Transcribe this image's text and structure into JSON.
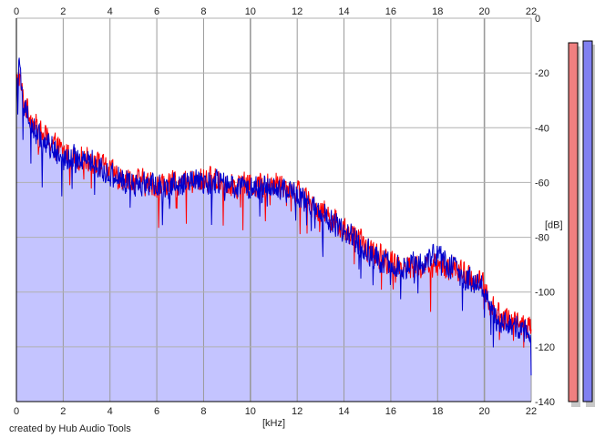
{
  "chart_data": {
    "type": "line",
    "title": "",
    "xlabel": "[kHz]",
    "ylabel": "[dB]",
    "xlim": [
      0,
      22
    ],
    "ylim": [
      -140,
      0
    ],
    "x_ticks": [
      0,
      2,
      4,
      6,
      8,
      10,
      12,
      14,
      16,
      18,
      20,
      22
    ],
    "x_tick_labels": [
      "0",
      "2",
      "4",
      "6",
      "8",
      "10",
      "12",
      "14",
      "16",
      "18",
      "20",
      "22"
    ],
    "y_ticks": [
      0,
      -20,
      -40,
      -60,
      -80,
      -100,
      -120,
      -140
    ],
    "y_tick_labels": [
      "0",
      "-20",
      "-40",
      "-60",
      "-80",
      "-100",
      "-120",
      "-140"
    ],
    "grid": true,
    "legend": "none",
    "series": [
      {
        "color": "#ff0000",
        "x": [
          0,
          0.1,
          0.3,
          0.6,
          1,
          1.5,
          2,
          2.5,
          3,
          3.5,
          4,
          4.5,
          5,
          5.5,
          6,
          6.5,
          7,
          7.5,
          8,
          8.5,
          9,
          9.5,
          10,
          10.5,
          11,
          11.5,
          12,
          12.5,
          13,
          13.5,
          14,
          14.5,
          15,
          15.5,
          16,
          16.5,
          17,
          17.5,
          18,
          18.5,
          19,
          19.5,
          20,
          20.2,
          20.5,
          21,
          21.5,
          22
        ],
        "y": [
          -26,
          -20,
          -30,
          -36,
          -42,
          -45,
          -49,
          -51,
          -51,
          -53,
          -56,
          -58,
          -59,
          -60,
          -61,
          -61,
          -60,
          -60,
          -59,
          -59,
          -60,
          -61,
          -61,
          -61,
          -60,
          -61,
          -63,
          -67,
          -70,
          -73,
          -77,
          -80,
          -84,
          -87,
          -89,
          -90,
          -91,
          -91,
          -90,
          -91,
          -93,
          -95,
          -98,
          -103,
          -108,
          -110,
          -111,
          -114
        ]
      },
      {
        "color": "#0000cc",
        "x": [
          0,
          0.1,
          0.3,
          0.6,
          1,
          1.5,
          2,
          2.5,
          3,
          3.5,
          4,
          4.5,
          5,
          5.5,
          6,
          6.5,
          7,
          7.5,
          8,
          8.5,
          9,
          9.5,
          10,
          10.5,
          11,
          11.5,
          12,
          12.5,
          13,
          13.5,
          14,
          14.5,
          15,
          15.5,
          16,
          16.5,
          17,
          17.5,
          18,
          18.5,
          19,
          19.5,
          20,
          20.2,
          20.5,
          21,
          21.5,
          22
        ],
        "y": [
          -27,
          -18,
          -31,
          -38,
          -44,
          -47,
          -51,
          -51,
          -51,
          -54,
          -57,
          -59,
          -60,
          -61,
          -62,
          -62,
          -61,
          -60,
          -60,
          -60,
          -61,
          -62,
          -63,
          -62,
          -61,
          -63,
          -64,
          -68,
          -71,
          -74,
          -78,
          -81,
          -85,
          -88,
          -90,
          -91,
          -90,
          -89,
          -86,
          -90,
          -94,
          -96,
          -99,
          -104,
          -110,
          -112,
          -113,
          -116
        ]
      }
    ],
    "fill_color": "#c4c4ff",
    "meter_colors": [
      "#f08080",
      "#8080f0"
    ]
  },
  "credit": "created by Hub Audio Tools"
}
